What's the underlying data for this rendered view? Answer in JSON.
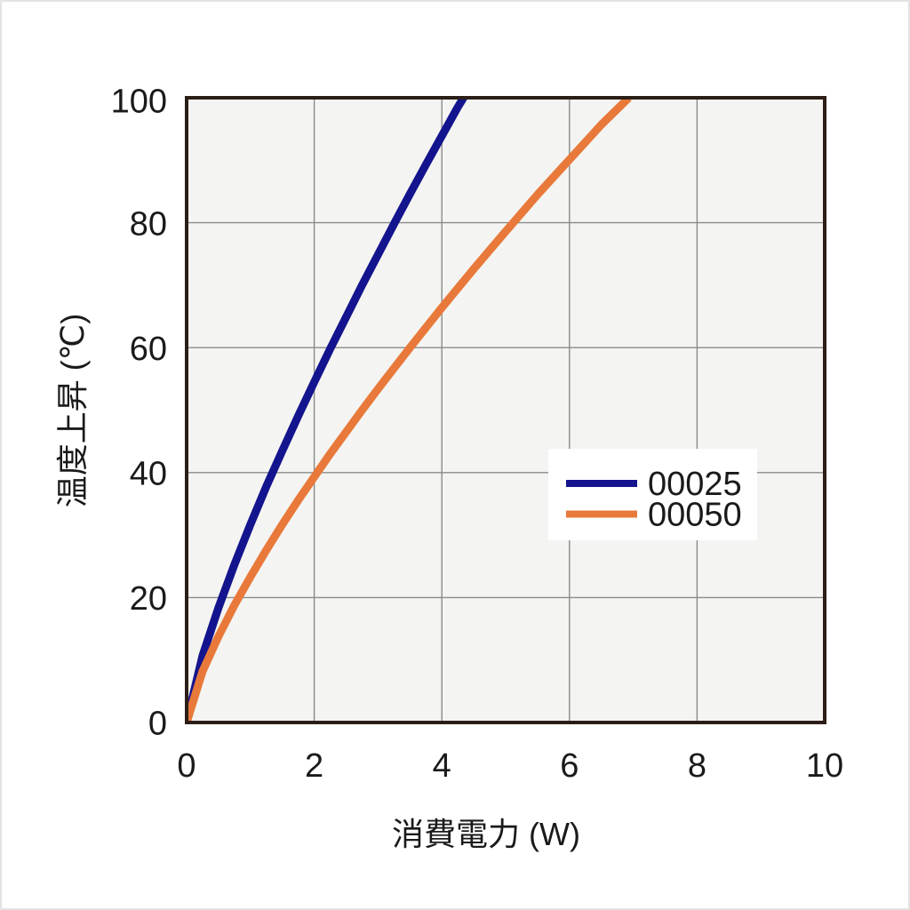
{
  "style": {
    "background": "#ffffff",
    "plot_bg": "#f4f4f2",
    "grid_color": "#8a8a8a",
    "axis_frame_color": "#2b1e16",
    "text_color": "#1a1a1a",
    "legend_bg": "#ffffff"
  },
  "chart_data": {
    "type": "line",
    "title": "",
    "xlabel": "消費電力 (W)",
    "ylabel": "温度上昇 (℃)",
    "xlim": [
      0,
      10
    ],
    "ylim": [
      0,
      100
    ],
    "xticks": [
      "0",
      "2",
      "4",
      "6",
      "8",
      "10"
    ],
    "yticks": [
      "0",
      "20",
      "40",
      "60",
      "80",
      "100"
    ],
    "grid": true,
    "legend_position": "inside-center-right",
    "series": [
      {
        "name": "00025",
        "color": "#14148e",
        "points": [
          [
            0,
            0
          ],
          [
            0.25,
            10.7
          ],
          [
            0.5,
            18.4
          ],
          [
            0.75,
            25.3
          ],
          [
            1,
            31.7
          ],
          [
            1.25,
            37.8
          ],
          [
            1.5,
            43.5
          ],
          [
            1.75,
            49.1
          ],
          [
            2,
            54.5
          ],
          [
            2.25,
            59.8
          ],
          [
            2.5,
            64.9
          ],
          [
            2.75,
            70.0
          ],
          [
            3,
            74.9
          ],
          [
            3.25,
            79.8
          ],
          [
            3.5,
            84.6
          ],
          [
            3.75,
            89.3
          ],
          [
            4,
            93.9
          ],
          [
            4.25,
            98.5
          ],
          [
            4.34,
            100
          ]
        ]
      },
      {
        "name": "00050",
        "color": "#e8793a",
        "points": [
          [
            0,
            0
          ],
          [
            0.25,
            8.2
          ],
          [
            0.5,
            13.8
          ],
          [
            0.75,
            18.8
          ],
          [
            1,
            23.3
          ],
          [
            1.25,
            27.6
          ],
          [
            1.5,
            31.7
          ],
          [
            1.75,
            35.6
          ],
          [
            2,
            39.3
          ],
          [
            2.25,
            43.0
          ],
          [
            2.5,
            46.5
          ],
          [
            2.75,
            50.0
          ],
          [
            3,
            53.4
          ],
          [
            3.5,
            60.0
          ],
          [
            4,
            66.4
          ],
          [
            4.5,
            72.6
          ],
          [
            5,
            78.6
          ],
          [
            5.5,
            84.5
          ],
          [
            6,
            90.1
          ],
          [
            6.5,
            95.7
          ],
          [
            6.93,
            100
          ]
        ]
      }
    ]
  }
}
